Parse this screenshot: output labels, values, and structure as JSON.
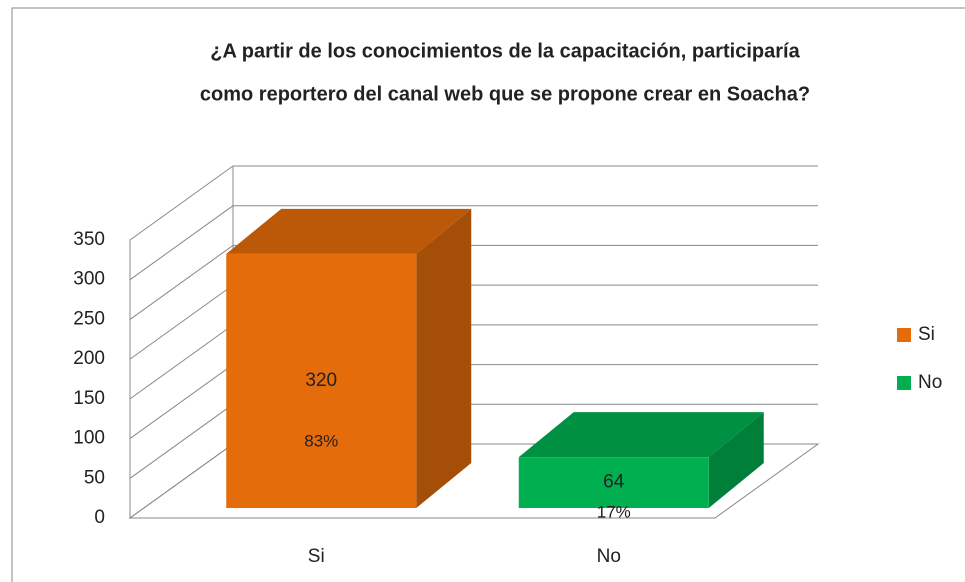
{
  "chart_data": {
    "type": "bar3d",
    "title": [
      "¿A partir de los conocimientos de la capacitación, participaría",
      "como reportero del canal web que se propone  crear en Soacha?"
    ],
    "categories": [
      "Si",
      "No"
    ],
    "values": [
      320,
      64
    ],
    "share_labels": [
      "83%",
      "17%"
    ],
    "colors": [
      "#e46c0a",
      "#00b050"
    ],
    "ylim": [
      0,
      350
    ],
    "yticks": [
      0,
      50,
      100,
      150,
      200,
      250,
      300,
      350
    ],
    "grid": true,
    "legend": "right"
  }
}
